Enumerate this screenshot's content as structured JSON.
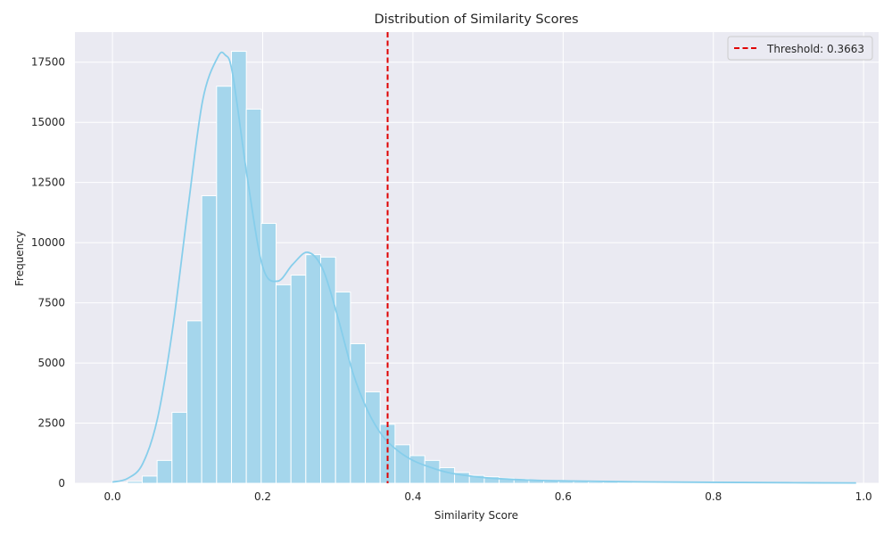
{
  "chart_data": {
    "type": "bar",
    "title": "Distribution of Similarity Scores",
    "xlabel": "Similarity Score",
    "ylabel": "Frequency",
    "xlim": [
      -0.05,
      1.02
    ],
    "ylim": [
      0,
      18750
    ],
    "xticks": [
      "0.0",
      "0.2",
      "0.4",
      "0.6",
      "0.8",
      "1.0"
    ],
    "xtick_values": [
      0.0,
      0.2,
      0.4,
      0.6,
      0.8,
      1.0
    ],
    "yticks": [
      "0",
      "2500",
      "5000",
      "7500",
      "10000",
      "12500",
      "15000",
      "17500"
    ],
    "ytick_values": [
      0,
      2500,
      5000,
      7500,
      10000,
      12500,
      15000,
      17500
    ],
    "bin_width": 0.0198,
    "bin_edges_start": 0.0,
    "values": [
      30,
      80,
      300,
      950,
      2950,
      6750,
      11950,
      16500,
      17950,
      15550,
      10800,
      8250,
      8650,
      9500,
      9400,
      7950,
      5800,
      3800,
      2450,
      1600,
      1150,
      950,
      650,
      450,
      330,
      270,
      210,
      170,
      130,
      100,
      85,
      70,
      60,
      52,
      45,
      40,
      35,
      32,
      29,
      26,
      24,
      22,
      20,
      18,
      16,
      14,
      12,
      10,
      8,
      6
    ],
    "kde": {
      "x": [
        0.0,
        0.02,
        0.04,
        0.06,
        0.08,
        0.1,
        0.12,
        0.14,
        0.15,
        0.16,
        0.18,
        0.2,
        0.22,
        0.24,
        0.26,
        0.28,
        0.3,
        0.32,
        0.34,
        0.36,
        0.38,
        0.4,
        0.42,
        0.44,
        0.46,
        0.5,
        0.55,
        0.6,
        0.7,
        0.8,
        0.9,
        0.99
      ],
      "y": [
        50,
        200,
        800,
        2700,
        6400,
        11300,
        15900,
        17700,
        17800,
        17000,
        12600,
        9000,
        8400,
        9100,
        9600,
        8900,
        6900,
        4600,
        3000,
        1950,
        1350,
        950,
        700,
        500,
        370,
        220,
        140,
        100,
        60,
        40,
        25,
        15
      ]
    },
    "threshold": 0.3663,
    "legend": {
      "label": "Threshold: 0.3663",
      "position": "upper right"
    },
    "grid": true,
    "colors": {
      "bar_fill": "#a5d6ec",
      "bar_stroke": "#ffffff",
      "kde_line": "#87ceeb",
      "threshold_line": "#e00000",
      "plot_bg": "#eaeaf2",
      "grid": "#ffffff"
    }
  }
}
